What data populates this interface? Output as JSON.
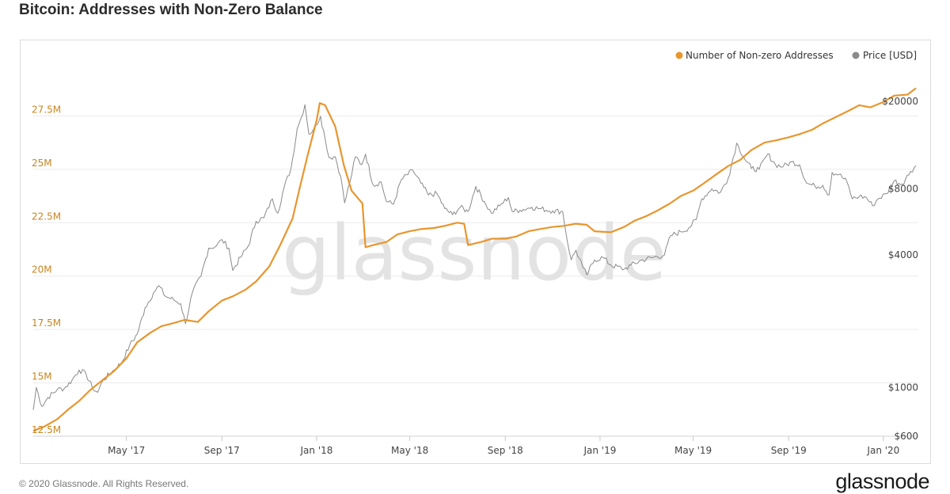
{
  "title": "Bitcoin: Addresses with Non-Zero Balance",
  "watermark": "glassnode",
  "footer": {
    "copyright": "© 2020 Glassnode. All Rights Reserved.",
    "brand": "glassnode"
  },
  "colors": {
    "addresses": "#E8962E",
    "price": "#8a8a8a",
    "left_axis_text": "#c7861f",
    "right_axis_text": "#444444",
    "grid": "#ececec",
    "watermark": "#e3e3e3"
  },
  "chart_data": {
    "type": "line",
    "title": "Bitcoin: Addresses with Non-Zero Balance",
    "x_start": "2017-01-01",
    "x_end": "2020-02-15",
    "x_ticks": [
      {
        "date": "2017-05-01",
        "label": "May '17"
      },
      {
        "date": "2017-09-01",
        "label": "Sep '17"
      },
      {
        "date": "2018-01-01",
        "label": "Jan '18"
      },
      {
        "date": "2018-05-01",
        "label": "May '18"
      },
      {
        "date": "2018-09-01",
        "label": "Sep '18"
      },
      {
        "date": "2019-01-01",
        "label": "Jan '19"
      },
      {
        "date": "2019-05-01",
        "label": "May '19"
      },
      {
        "date": "2019-09-01",
        "label": "Sep '19"
      },
      {
        "date": "2020-01-01",
        "label": "Jan '20"
      }
    ],
    "y_left": {
      "label": "",
      "scale": "linear",
      "range": [
        12500000,
        30000000
      ],
      "ticks": [
        12500000,
        15000000,
        17500000,
        20000000,
        22500000,
        25000000,
        27500000
      ],
      "tick_labels": [
        "12.5M",
        "15M",
        "17.5M",
        "20M",
        "22.5M",
        "25M",
        "27.5M"
      ]
    },
    "y_right": {
      "label": "",
      "scale": "log",
      "range": [
        600,
        30000
      ],
      "ticks": [
        600,
        1000,
        4000,
        8000,
        20000
      ],
      "tick_labels": [
        "$600",
        "$1000",
        "$4000",
        "$8000",
        "$20000"
      ]
    },
    "legend": {
      "position": "top-right"
    },
    "grid": true,
    "series": [
      {
        "name": "Number of Non-zero Addresses",
        "axis": "left",
        "color": "#E8962E",
        "points": [
          [
            "2017-01-01",
            12750000
          ],
          [
            "2017-01-15",
            12950000
          ],
          [
            "2017-02-01",
            13300000
          ],
          [
            "2017-02-15",
            13750000
          ],
          [
            "2017-03-01",
            14150000
          ],
          [
            "2017-03-15",
            14650000
          ],
          [
            "2017-04-01",
            15150000
          ],
          [
            "2017-04-15",
            15550000
          ],
          [
            "2017-05-01",
            16150000
          ],
          [
            "2017-05-15",
            16900000
          ],
          [
            "2017-06-01",
            17350000
          ],
          [
            "2017-06-15",
            17650000
          ],
          [
            "2017-07-01",
            17800000
          ],
          [
            "2017-07-15",
            17950000
          ],
          [
            "2017-08-01",
            17850000
          ],
          [
            "2017-08-15",
            18350000
          ],
          [
            "2017-09-01",
            18850000
          ],
          [
            "2017-09-15",
            19050000
          ],
          [
            "2017-10-01",
            19350000
          ],
          [
            "2017-10-15",
            19750000
          ],
          [
            "2017-11-01",
            20450000
          ],
          [
            "2017-11-15",
            21450000
          ],
          [
            "2017-12-01",
            22700000
          ],
          [
            "2017-12-10",
            24100000
          ],
          [
            "2017-12-20",
            25600000
          ],
          [
            "2018-01-01",
            27300000
          ],
          [
            "2018-01-05",
            28100000
          ],
          [
            "2018-01-12",
            28000000
          ],
          [
            "2018-01-25",
            27000000
          ],
          [
            "2018-02-05",
            25200000
          ],
          [
            "2018-02-15",
            24000000
          ],
          [
            "2018-03-01",
            23400000
          ],
          [
            "2018-03-05",
            21350000
          ],
          [
            "2018-03-15",
            21450000
          ],
          [
            "2018-04-01",
            21600000
          ],
          [
            "2018-04-15",
            21950000
          ],
          [
            "2018-05-01",
            22100000
          ],
          [
            "2018-05-15",
            22200000
          ],
          [
            "2018-06-01",
            22250000
          ],
          [
            "2018-06-15",
            22350000
          ],
          [
            "2018-07-01",
            22500000
          ],
          [
            "2018-07-10",
            22450000
          ],
          [
            "2018-07-15",
            21450000
          ],
          [
            "2018-08-01",
            21600000
          ],
          [
            "2018-08-15",
            21750000
          ],
          [
            "2018-09-01",
            21750000
          ],
          [
            "2018-09-15",
            21850000
          ],
          [
            "2018-10-01",
            22100000
          ],
          [
            "2018-10-15",
            22200000
          ],
          [
            "2018-11-01",
            22300000
          ],
          [
            "2018-11-15",
            22350000
          ],
          [
            "2018-12-01",
            22450000
          ],
          [
            "2018-12-15",
            22400000
          ],
          [
            "2018-12-25",
            22100000
          ],
          [
            "2019-01-15",
            22050000
          ],
          [
            "2019-02-01",
            22300000
          ],
          [
            "2019-02-15",
            22600000
          ],
          [
            "2019-03-01",
            22800000
          ],
          [
            "2019-03-15",
            23050000
          ],
          [
            "2019-04-01",
            23400000
          ],
          [
            "2019-04-15",
            23750000
          ],
          [
            "2019-05-01",
            24000000
          ],
          [
            "2019-05-15",
            24350000
          ],
          [
            "2019-06-01",
            24800000
          ],
          [
            "2019-06-15",
            25150000
          ],
          [
            "2019-07-01",
            25450000
          ],
          [
            "2019-07-15",
            25900000
          ],
          [
            "2019-08-01",
            26250000
          ],
          [
            "2019-08-15",
            26350000
          ],
          [
            "2019-09-01",
            26500000
          ],
          [
            "2019-09-15",
            26650000
          ],
          [
            "2019-10-01",
            26850000
          ],
          [
            "2019-10-15",
            27150000
          ],
          [
            "2019-11-01",
            27450000
          ],
          [
            "2019-11-15",
            27700000
          ],
          [
            "2019-12-01",
            28000000
          ],
          [
            "2019-12-15",
            27900000
          ],
          [
            "2020-01-01",
            28150000
          ],
          [
            "2020-01-15",
            28450000
          ],
          [
            "2020-02-01",
            28500000
          ],
          [
            "2020-02-12",
            28800000
          ]
        ]
      },
      {
        "name": "Price [USD]",
        "axis": "right",
        "color": "#8a8a8a",
        "points": [
          [
            "2017-01-01",
            790
          ],
          [
            "2017-01-05",
            1000
          ],
          [
            "2017-01-12",
            820
          ],
          [
            "2017-01-20",
            900
          ],
          [
            "2017-02-01",
            980
          ],
          [
            "2017-02-10",
            990
          ],
          [
            "2017-02-20",
            1080
          ],
          [
            "2017-03-01",
            1200
          ],
          [
            "2017-03-10",
            1150
          ],
          [
            "2017-03-18",
            1000
          ],
          [
            "2017-03-25",
            950
          ],
          [
            "2017-04-01",
            1080
          ],
          [
            "2017-04-15",
            1200
          ],
          [
            "2017-04-25",
            1300
          ],
          [
            "2017-05-05",
            1550
          ],
          [
            "2017-05-15",
            1750
          ],
          [
            "2017-05-25",
            2300
          ],
          [
            "2017-06-05",
            2700
          ],
          [
            "2017-06-12",
            2900
          ],
          [
            "2017-06-20",
            2600
          ],
          [
            "2017-07-01",
            2500
          ],
          [
            "2017-07-10",
            2400
          ],
          [
            "2017-07-16",
            1950
          ],
          [
            "2017-07-25",
            2700
          ],
          [
            "2017-08-05",
            3200
          ],
          [
            "2017-08-15",
            4300
          ],
          [
            "2017-08-25",
            4400
          ],
          [
            "2017-09-01",
            4700
          ],
          [
            "2017-09-10",
            4300
          ],
          [
            "2017-09-15",
            3400
          ],
          [
            "2017-09-25",
            3900
          ],
          [
            "2017-10-05",
            4400
          ],
          [
            "2017-10-15",
            5700
          ],
          [
            "2017-10-25",
            5900
          ],
          [
            "2017-11-05",
            7200
          ],
          [
            "2017-11-12",
            6200
          ],
          [
            "2017-11-20",
            8100
          ],
          [
            "2017-11-29",
            9900
          ],
          [
            "2017-12-07",
            15000
          ],
          [
            "2017-12-12",
            16800
          ],
          [
            "2017-12-17",
            19300
          ],
          [
            "2017-12-22",
            14200
          ],
          [
            "2017-12-28",
            14900
          ],
          [
            "2018-01-06",
            17100
          ],
          [
            "2018-01-12",
            13500
          ],
          [
            "2018-01-17",
            11100
          ],
          [
            "2018-01-25",
            11200
          ],
          [
            "2018-02-01",
            9100
          ],
          [
            "2018-02-06",
            6900
          ],
          [
            "2018-02-13",
            8600
          ],
          [
            "2018-02-20",
            11200
          ],
          [
            "2018-02-28",
            10300
          ],
          [
            "2018-03-05",
            11500
          ],
          [
            "2018-03-15",
            8300
          ],
          [
            "2018-03-25",
            8600
          ],
          [
            "2018-04-01",
            7000
          ],
          [
            "2018-04-10",
            6800
          ],
          [
            "2018-04-20",
            8800
          ],
          [
            "2018-05-05",
            9700
          ],
          [
            "2018-05-15",
            8500
          ],
          [
            "2018-05-25",
            7500
          ],
          [
            "2018-06-05",
            7600
          ],
          [
            "2018-06-15",
            6500
          ],
          [
            "2018-06-25",
            6100
          ],
          [
            "2018-07-05",
            6600
          ],
          [
            "2018-07-15",
            6300
          ],
          [
            "2018-07-25",
            8200
          ],
          [
            "2018-08-05",
            7000
          ],
          [
            "2018-08-14",
            6200
          ],
          [
            "2018-08-25",
            6700
          ],
          [
            "2018-09-05",
            7300
          ],
          [
            "2018-09-10",
            6300
          ],
          [
            "2018-09-20",
            6400
          ],
          [
            "2018-10-05",
            6600
          ],
          [
            "2018-10-15",
            6500
          ],
          [
            "2018-11-01",
            6350
          ],
          [
            "2018-11-14",
            6300
          ],
          [
            "2018-11-20",
            4600
          ],
          [
            "2018-11-25",
            3800
          ],
          [
            "2018-12-01",
            4200
          ],
          [
            "2018-12-10",
            3500
          ],
          [
            "2018-12-15",
            3250
          ],
          [
            "2018-12-25",
            3800
          ],
          [
            "2019-01-05",
            3900
          ],
          [
            "2019-01-15",
            3600
          ],
          [
            "2019-02-01",
            3450
          ],
          [
            "2019-02-10",
            3600
          ],
          [
            "2019-02-25",
            3800
          ],
          [
            "2019-03-10",
            3900
          ],
          [
            "2019-03-25",
            4000
          ],
          [
            "2019-04-02",
            4900
          ],
          [
            "2019-04-15",
            5100
          ],
          [
            "2019-04-25",
            5300
          ],
          [
            "2019-05-05",
            5800
          ],
          [
            "2019-05-12",
            7200
          ],
          [
            "2019-05-25",
            8000
          ],
          [
            "2019-06-05",
            7700
          ],
          [
            "2019-06-15",
            8900
          ],
          [
            "2019-06-26",
            12900
          ],
          [
            "2019-07-05",
            11200
          ],
          [
            "2019-07-15",
            9900
          ],
          [
            "2019-07-25",
            9800
          ],
          [
            "2019-08-05",
            11500
          ],
          [
            "2019-08-15",
            10300
          ],
          [
            "2019-08-25",
            10100
          ],
          [
            "2019-09-05",
            10600
          ],
          [
            "2019-09-15",
            10300
          ],
          [
            "2019-09-24",
            8500
          ],
          [
            "2019-10-05",
            8200
          ],
          [
            "2019-10-15",
            8300
          ],
          [
            "2019-10-23",
            7500
          ],
          [
            "2019-10-27",
            9500
          ],
          [
            "2019-11-05",
            9300
          ],
          [
            "2019-11-15",
            8600
          ],
          [
            "2019-11-22",
            7200
          ],
          [
            "2019-12-01",
            7400
          ],
          [
            "2019-12-10",
            7300
          ],
          [
            "2019-12-18",
            6700
          ],
          [
            "2019-12-25",
            7200
          ],
          [
            "2020-01-05",
            7600
          ],
          [
            "2020-01-15",
            8700
          ],
          [
            "2020-01-25",
            8400
          ],
          [
            "2020-02-05",
            9600
          ],
          [
            "2020-02-12",
            10200
          ]
        ]
      }
    ]
  }
}
